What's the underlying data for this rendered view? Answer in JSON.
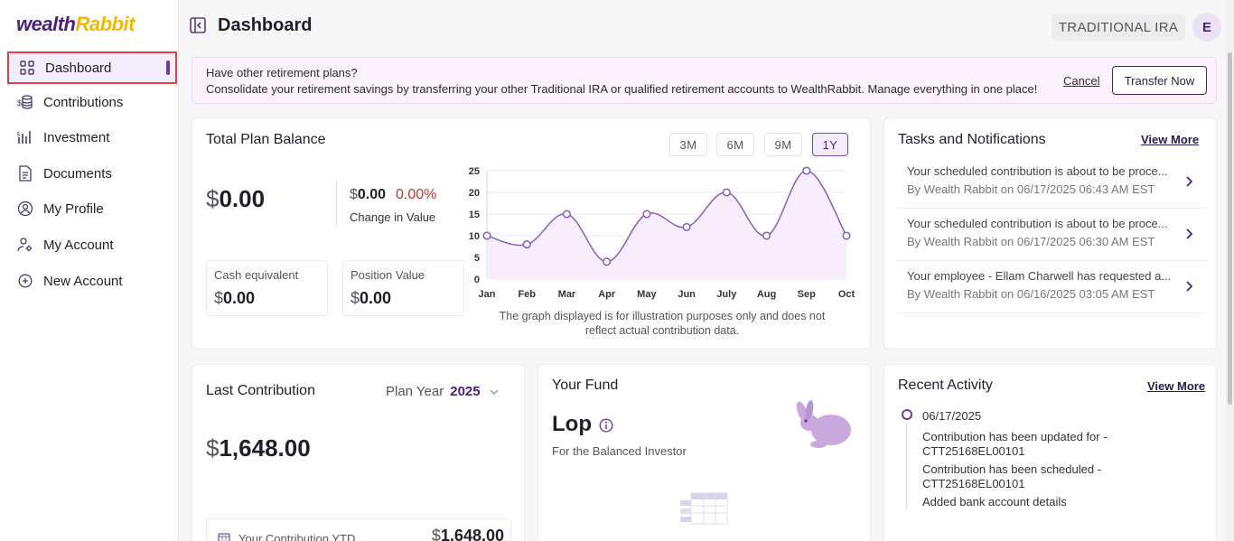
{
  "brand": {
    "logo_part1": "wealth",
    "logo_part2": "Rabbit"
  },
  "sidebar": {
    "items": [
      {
        "label": "Dashboard",
        "icon": "grid-icon"
      },
      {
        "label": "Contributions",
        "icon": "coins-icon"
      },
      {
        "label": "Investment",
        "icon": "chart-bars-icon"
      },
      {
        "label": "Documents",
        "icon": "document-icon"
      },
      {
        "label": "My Profile",
        "icon": "user-circle-icon"
      },
      {
        "label": "My Account",
        "icon": "user-gear-icon"
      },
      {
        "label": "New Account",
        "icon": "plus-circle-icon"
      }
    ]
  },
  "header": {
    "title": "Dashboard",
    "account_type": "TRADITIONAL IRA",
    "avatar_initial": "E"
  },
  "banner": {
    "title": "Have other retirement plans?",
    "text": "Consolidate your retirement savings by transferring your other Traditional IRA or qualified retirement accounts to WealthRabbit. Manage everything in one place!",
    "cancel": "Cancel",
    "transfer": "Transfer Now"
  },
  "balance": {
    "title": "Total Plan Balance",
    "periods": [
      "3M",
      "6M",
      "9M",
      "1Y"
    ],
    "active_period": "1Y",
    "currency": "$",
    "total": "0.00",
    "change_amount": "0.00",
    "change_pct": "0.00%",
    "change_label": "Change in Value",
    "cash_label": "Cash equivalent",
    "cash_value": "0.00",
    "position_label": "Position Value",
    "position_value": "0.00",
    "disclaimer_1": "The graph displayed is for illustration purposes only and does not",
    "disclaimer_2": "reflect actual contribution data."
  },
  "chart_data": {
    "type": "area",
    "categories": [
      "Jan",
      "Feb",
      "Mar",
      "Apr",
      "May",
      "Jun",
      "July",
      "Aug",
      "Sep",
      "Oct"
    ],
    "values": [
      10,
      8,
      15,
      4,
      15,
      12,
      20,
      10,
      25,
      10
    ],
    "yticks": [
      0,
      5,
      10,
      15,
      20,
      25
    ],
    "ylim": [
      0,
      25
    ],
    "grid": true,
    "color": "#8a5cc0"
  },
  "tasks": {
    "title": "Tasks and Notifications",
    "view_more": "View More",
    "items": [
      {
        "text": "Your scheduled contribution is about to be proce...",
        "meta": "By Wealth Rabbit on 06/17/2025 06:43 AM EST"
      },
      {
        "text": "Your scheduled contribution is about to be proce...",
        "meta": "By Wealth Rabbit on 06/17/2025 06:30 AM EST"
      },
      {
        "text": "Your employee - Ellam Charwell has requested a...",
        "meta": "By Wealth Rabbit on 06/16/2025 03:05 AM EST"
      }
    ]
  },
  "last_contribution": {
    "title": "Last Contribution",
    "plan_year_label": "Plan Year",
    "plan_year": "2025",
    "currency": "$",
    "amount": "1,648.00",
    "ytd_label": "Your Contribution YTD",
    "ytd_amount": "1,648.00"
  },
  "fund": {
    "title": "Your Fund",
    "name": "Lop",
    "subtitle": "For the Balanced Investor"
  },
  "recent": {
    "title": "Recent Activity",
    "view_more": "View More",
    "date": "06/17/2025",
    "lines": [
      "Contribution has been updated for -",
      "CTT25168EL00101",
      "Contribution has been scheduled -",
      "CTT25168EL00101",
      "Added bank account details"
    ]
  }
}
